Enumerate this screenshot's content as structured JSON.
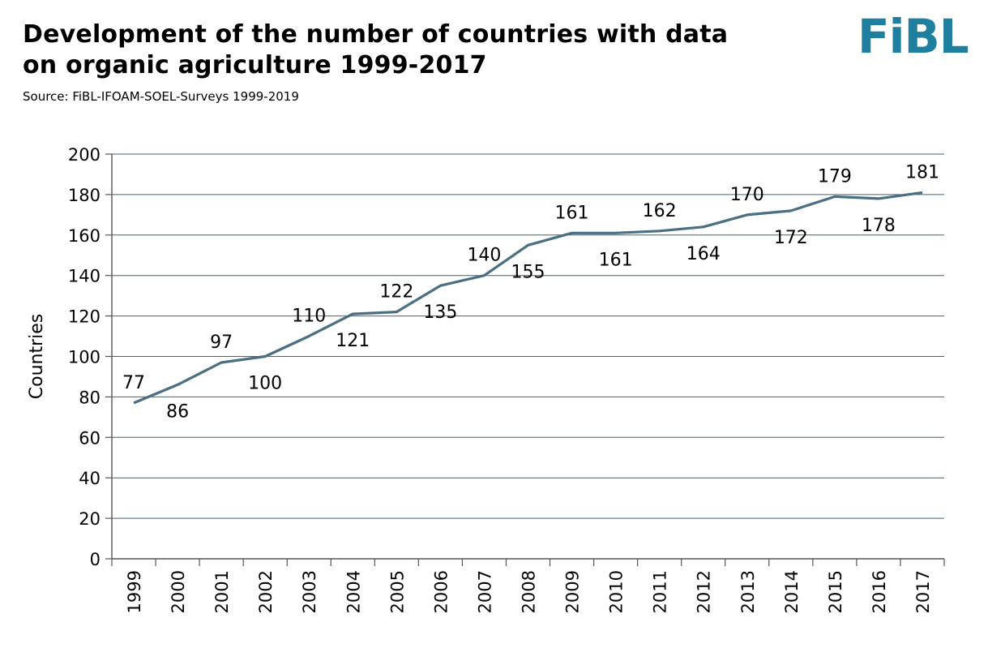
{
  "header": {
    "title": "Development of the number of countries with data on organic agriculture 1999-2017",
    "source": "Source: FiBL-IFOAM-SOEL-Surveys 1999-2019",
    "logo_text": "FiBL"
  },
  "colors": {
    "line": "#4a6f82",
    "grid": "#3f6474",
    "axis": "#555555",
    "logo": "#1f7f9e"
  },
  "chart_data": {
    "type": "line",
    "title": "Development of the number of countries with data on organic agriculture 1999-2017",
    "subtitle": "Source: FiBL-IFOAM-SOEL-Surveys 1999-2019",
    "xlabel": "",
    "ylabel": "Countries",
    "ylim": [
      0,
      200
    ],
    "yticks": [
      "0",
      "20",
      "40",
      "60",
      "80",
      "100",
      "120",
      "140",
      "160",
      "180",
      "200"
    ],
    "categories": [
      "1999",
      "2000",
      "2001",
      "2002",
      "2003",
      "2004",
      "2005",
      "2006",
      "2007",
      "2008",
      "2009",
      "2010",
      "2011",
      "2012",
      "2013",
      "2014",
      "2015",
      "2016",
      "2017"
    ],
    "series": [
      {
        "values": [
          77,
          86,
          97,
          100,
          110,
          121,
          122,
          135,
          140,
          155,
          161,
          161,
          162,
          164,
          170,
          172,
          179,
          178,
          181
        ],
        "data_label_position": [
          "above",
          "below",
          "above",
          "below",
          "above",
          "below",
          "above",
          "below",
          "above",
          "below",
          "above",
          "below",
          "above",
          "below",
          "above",
          "below",
          "above",
          "below",
          "above"
        ]
      }
    ],
    "grid": true,
    "legend": "none"
  }
}
